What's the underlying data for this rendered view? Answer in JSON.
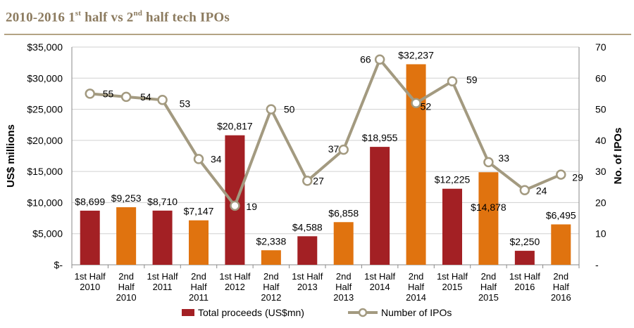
{
  "page": {
    "title_parts": [
      "2010-2016 1",
      "st",
      " half vs 2",
      "nd",
      " half tech IPOs"
    ]
  },
  "colors": {
    "first_half": "#a32024",
    "second_half": "#e0730f",
    "line": "#a39a80",
    "marker_fill": "#ffffff",
    "title": "#8c7b5f"
  },
  "chart_data": {
    "type": "bar",
    "title": "2010-2016 1st half vs 2nd half tech IPOs",
    "categories": [
      [
        "1st Half",
        "2010"
      ],
      [
        "2nd",
        "Half",
        "2010"
      ],
      [
        "1st Half",
        "2011"
      ],
      [
        "2nd",
        "Half",
        "2011"
      ],
      [
        "1st Half",
        "2012"
      ],
      [
        "2nd",
        "Half",
        "2012"
      ],
      [
        "1st Half",
        "2013"
      ],
      [
        "2nd",
        "Half",
        "2013"
      ],
      [
        "1st Half",
        "2014"
      ],
      [
        "2nd",
        "Half",
        "2014"
      ],
      [
        "1st Half",
        "2015"
      ],
      [
        "2nd",
        "Half",
        "2015"
      ],
      [
        "1st Half",
        "2016"
      ],
      [
        "2nd",
        "Half",
        "2016"
      ]
    ],
    "series": [
      {
        "name": "Total proceeds (US$mn)",
        "type": "bar",
        "axis": "left",
        "values": [
          8699,
          9253,
          8710,
          7147,
          20817,
          2338,
          4588,
          6858,
          18955,
          32237,
          12225,
          14878,
          2250,
          6495
        ],
        "labels": [
          "$8,699",
          "$9,253",
          "$8,710",
          "$7,147",
          "$20,817",
          "$2,338",
          "$4,588",
          "$6,858",
          "$18,955",
          "$32,237",
          "$12,225",
          "$14,878",
          "$2,250",
          "$6,495"
        ]
      },
      {
        "name": "Number of IPOs",
        "type": "line",
        "axis": "right",
        "values": [
          55,
          54,
          53,
          34,
          19,
          50,
          27,
          37,
          66,
          52,
          59,
          33,
          24,
          29
        ]
      }
    ],
    "left_axis": {
      "label": "US$ millions",
      "range": [
        0,
        35000
      ],
      "ticks": [
        "$-",
        "$5,000",
        "$10,000",
        "$15,000",
        "$20,000",
        "$25,000",
        "$30,000",
        "$35,000"
      ]
    },
    "right_axis": {
      "label": "No. of IPOs",
      "range": [
        0,
        70
      ],
      "ticks": [
        "-",
        "10",
        "20",
        "30",
        "40",
        "50",
        "60",
        "70"
      ]
    },
    "grid": "horizontal",
    "legend": "bottom"
  }
}
